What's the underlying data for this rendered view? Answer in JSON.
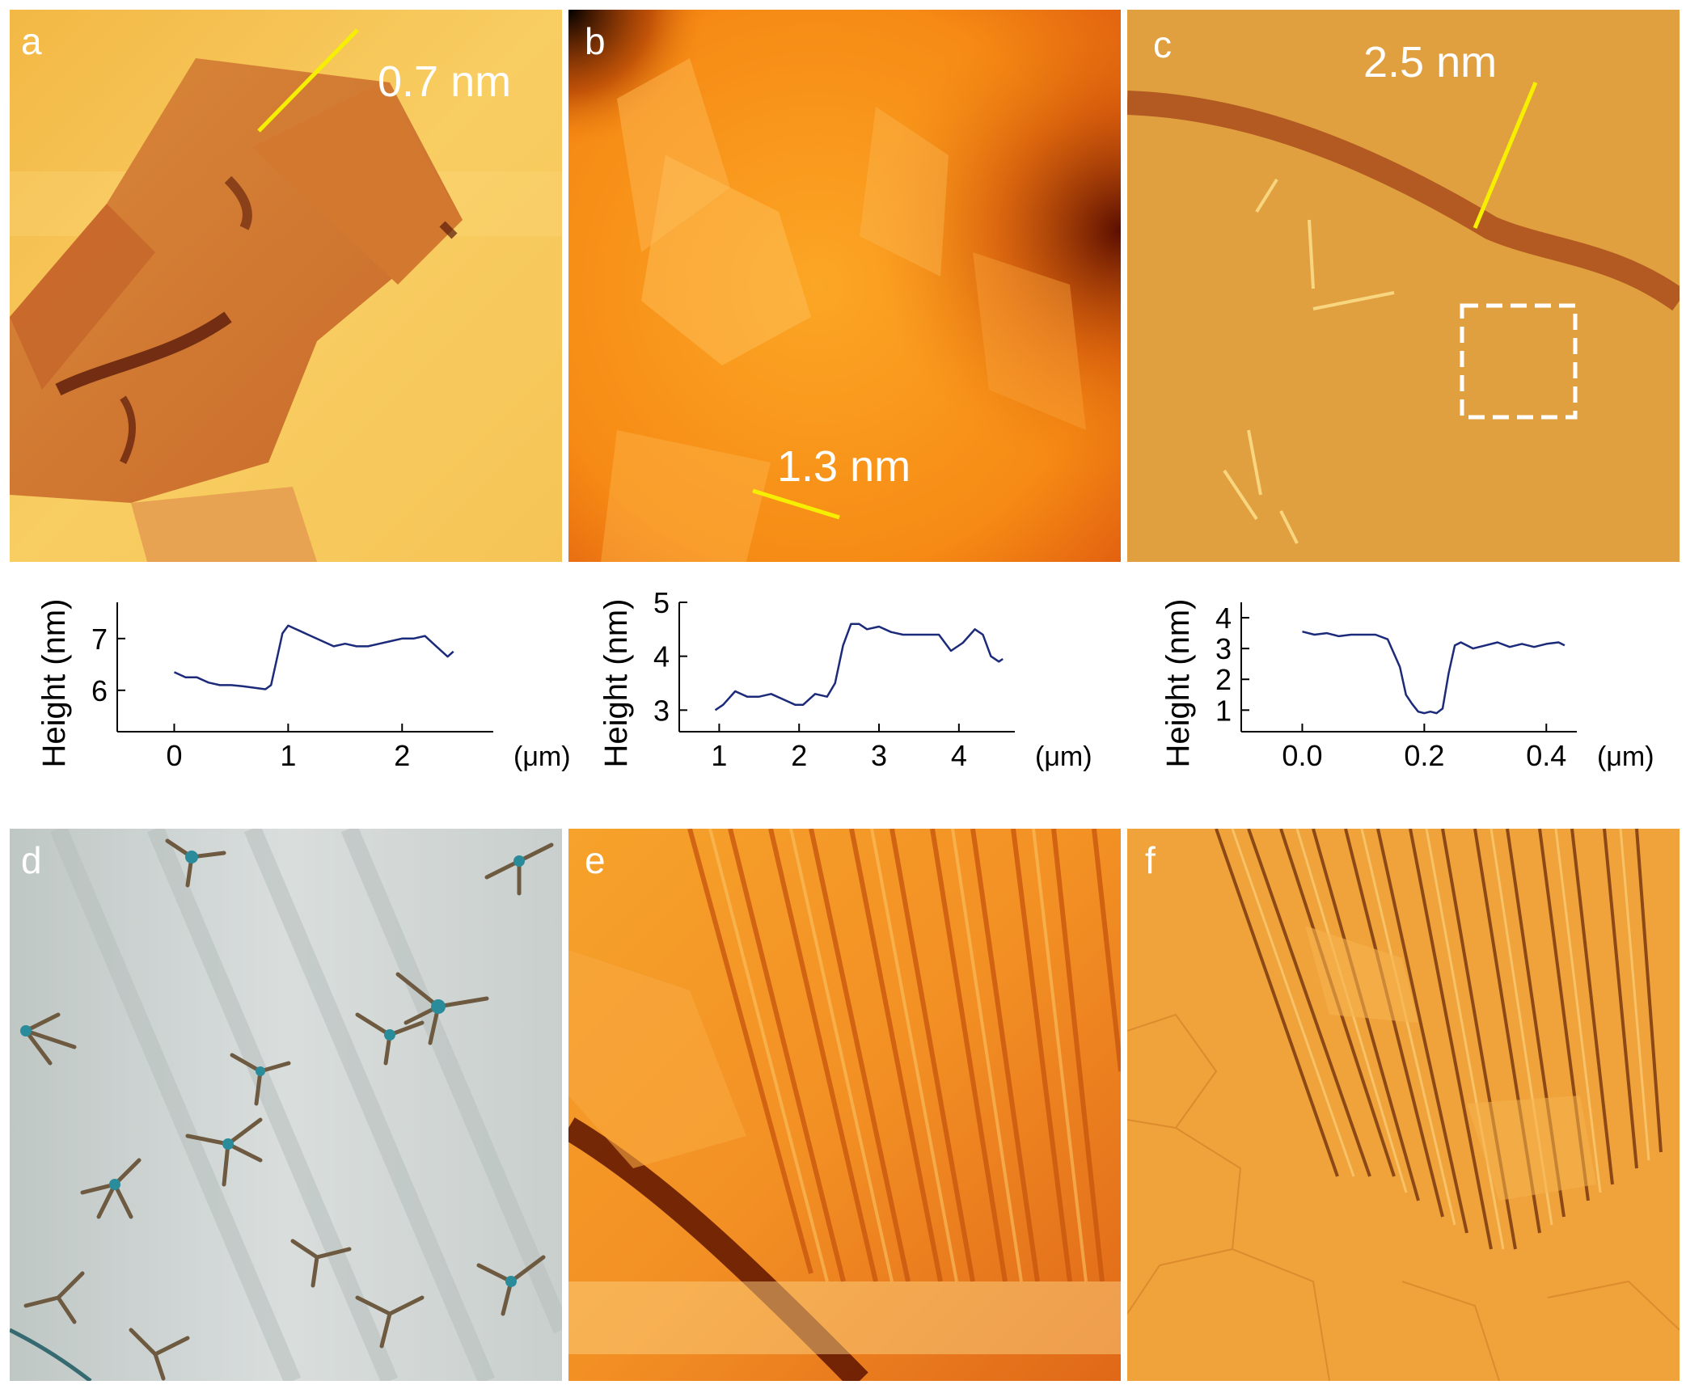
{
  "panels": {
    "a": {
      "label": "a",
      "annotation": "0.7 nm"
    },
    "b": {
      "label": "b",
      "annotation": "1.3 nm"
    },
    "c": {
      "label": "c",
      "annotation": "2.5 nm"
    },
    "d": {
      "label": "d"
    },
    "e": {
      "label": "e"
    },
    "f": {
      "label": "f"
    }
  },
  "chart_data": [
    {
      "type": "line",
      "panel": "a",
      "ylabel": "Height (nm)",
      "xunit": "(μm)",
      "xticks": [
        "0",
        "1",
        "2"
      ],
      "yticks": [
        "6",
        "7"
      ],
      "xlim": [
        -0.5,
        2.8
      ],
      "ylim": [
        5.2,
        7.7
      ],
      "series": [
        {
          "x": [
            0,
            0.1,
            0.2,
            0.3,
            0.4,
            0.5,
            0.6,
            0.7,
            0.8,
            0.85,
            0.9,
            0.95,
            1.0,
            1.05,
            1.1,
            1.2,
            1.3,
            1.4,
            1.5,
            1.6,
            1.7,
            1.8,
            1.9,
            2.0,
            2.1,
            2.2,
            2.3,
            2.4,
            2.45
          ],
          "y": [
            6.35,
            6.25,
            6.25,
            6.15,
            6.1,
            6.1,
            6.08,
            6.05,
            6.02,
            6.1,
            6.6,
            7.1,
            7.25,
            7.2,
            7.15,
            7.05,
            6.95,
            6.85,
            6.9,
            6.85,
            6.85,
            6.9,
            6.95,
            7.0,
            7.0,
            7.05,
            6.85,
            6.65,
            6.75
          ]
        }
      ]
    },
    {
      "type": "line",
      "panel": "b",
      "ylabel": "Height (nm)",
      "xunit": "(μm)",
      "xticks": [
        "1",
        "2",
        "3",
        "4"
      ],
      "yticks": [
        "3",
        "4",
        "5"
      ],
      "xlim": [
        0.5,
        4.7
      ],
      "ylim": [
        2.6,
        5.0
      ],
      "series": [
        {
          "x": [
            0.95,
            1.05,
            1.2,
            1.35,
            1.5,
            1.65,
            1.8,
            1.95,
            2.05,
            2.2,
            2.35,
            2.45,
            2.55,
            2.65,
            2.75,
            2.85,
            3.0,
            3.15,
            3.3,
            3.45,
            3.6,
            3.75,
            3.9,
            4.05,
            4.2,
            4.3,
            4.4,
            4.5,
            4.55
          ],
          "y": [
            3.0,
            3.1,
            3.35,
            3.25,
            3.25,
            3.3,
            3.2,
            3.1,
            3.1,
            3.3,
            3.25,
            3.5,
            4.2,
            4.6,
            4.6,
            4.5,
            4.55,
            4.45,
            4.4,
            4.4,
            4.4,
            4.4,
            4.1,
            4.25,
            4.5,
            4.4,
            4.0,
            3.9,
            3.95
          ]
        }
      ]
    },
    {
      "type": "line",
      "panel": "c",
      "ylabel": "Height (nm)",
      "xunit": "(μm)",
      "xticks": [
        "0.0",
        "0.2",
        "0.4"
      ],
      "yticks": [
        "1",
        "2",
        "3",
        "4"
      ],
      "xlim": [
        -0.1,
        0.45
      ],
      "ylim": [
        0.3,
        4.5
      ],
      "series": [
        {
          "x": [
            0.0,
            0.02,
            0.04,
            0.06,
            0.08,
            0.1,
            0.12,
            0.14,
            0.16,
            0.17,
            0.18,
            0.19,
            0.2,
            0.21,
            0.22,
            0.23,
            0.24,
            0.25,
            0.26,
            0.28,
            0.3,
            0.32,
            0.34,
            0.36,
            0.38,
            0.4,
            0.42,
            0.43
          ],
          "y": [
            3.55,
            3.45,
            3.5,
            3.4,
            3.45,
            3.45,
            3.45,
            3.3,
            2.4,
            1.5,
            1.2,
            0.95,
            0.9,
            0.95,
            0.9,
            1.05,
            2.2,
            3.1,
            3.2,
            3.0,
            3.1,
            3.2,
            3.05,
            3.15,
            3.05,
            3.15,
            3.2,
            3.1
          ]
        }
      ]
    }
  ]
}
